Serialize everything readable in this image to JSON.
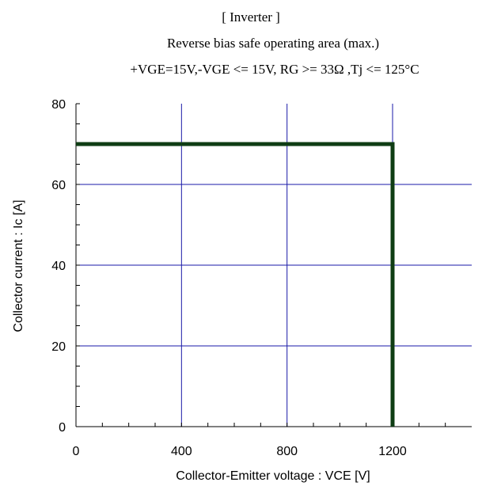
{
  "chart_data": {
    "type": "line",
    "title": "[ Inverter ]",
    "subtitle": "Reverse bias safe operating area (max.)",
    "conditions": "+VGE=15V,-VGE <= 15V, RG >= 33Ω ,Tj <= 125°C",
    "xlabel": "Collector-Emitter voltage : VCE [V]",
    "ylabel": "Collector current : Ic [A]",
    "xlim": [
      0,
      1500
    ],
    "ylim": [
      0,
      80
    ],
    "xticks": [
      0,
      400,
      800,
      1200
    ],
    "xtick_labels": [
      "0",
      "400",
      "800",
      "1200"
    ],
    "yticks": [
      0,
      20,
      40,
      60,
      80
    ],
    "ytick_labels": [
      "0",
      "20",
      "40",
      "60",
      "80"
    ],
    "x_minor_step": 100,
    "y_minor_step": 5,
    "grid": true,
    "grid_color": "#1a1aa8",
    "series": [
      {
        "color": "#0f3d14",
        "x": [
          0,
          1200,
          1200
        ],
        "y": [
          70,
          70,
          0
        ]
      }
    ]
  }
}
